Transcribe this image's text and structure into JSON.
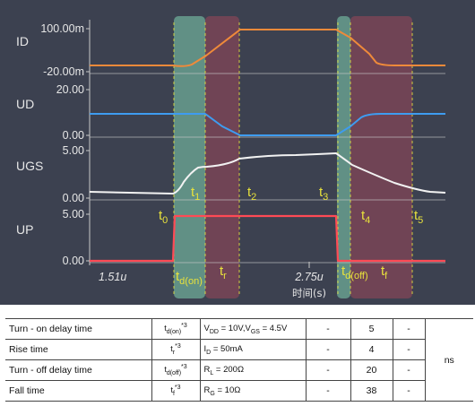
{
  "chart_data": {
    "type": "line",
    "x_axis": {
      "tick_labels": [
        "1.51u",
        "2.75u"
      ],
      "xlabel": "时间(s)"
    },
    "panels": [
      {
        "name": "ID",
        "tick_labels": [
          "100.00m",
          "-20.00m"
        ],
        "color": "#ef8a3a"
      },
      {
        "name": "UD",
        "tick_labels": [
          "20.00",
          "0.00"
        ],
        "color": "#3e9cf0"
      },
      {
        "name": "UGS",
        "tick_labels": [
          "5.00",
          "0.00"
        ],
        "color": "#f2f2f2"
      },
      {
        "name": "UP",
        "tick_labels": [
          "5.00",
          "0.00"
        ],
        "color": "#ff4a55"
      }
    ],
    "time_markers": [
      "t0",
      "t1",
      "t2",
      "t3",
      "t4",
      "t5"
    ],
    "interval_labels": [
      "td(on)",
      "tr",
      "td(off)",
      "tf"
    ],
    "colors": {
      "background": "#3c4150",
      "delay_band": "#7fd1b0",
      "transition_band": "#b04a5a",
      "marker": "#e8e23c",
      "label": "#e6e6e6"
    }
  },
  "table": {
    "unit": "ns",
    "rows": [
      {
        "name": "Turn - on delay time",
        "symbol": "td(on)*3",
        "condition": "VDD = 10V,VGS = 4.5V",
        "min": "-",
        "typ": "5",
        "max": "-"
      },
      {
        "name": "Rise time",
        "symbol": "tr*3",
        "condition": "ID = 50mA",
        "min": "-",
        "typ": "4",
        "max": "-"
      },
      {
        "name": "Turn - off delay time",
        "symbol": "td(off)*3",
        "condition": "RL = 200Ω",
        "min": "-",
        "typ": "20",
        "max": "-"
      },
      {
        "name": "Fall time",
        "symbol": "tf*3",
        "condition": "RG = 10Ω",
        "min": "-",
        "typ": "38",
        "max": "-"
      }
    ]
  }
}
